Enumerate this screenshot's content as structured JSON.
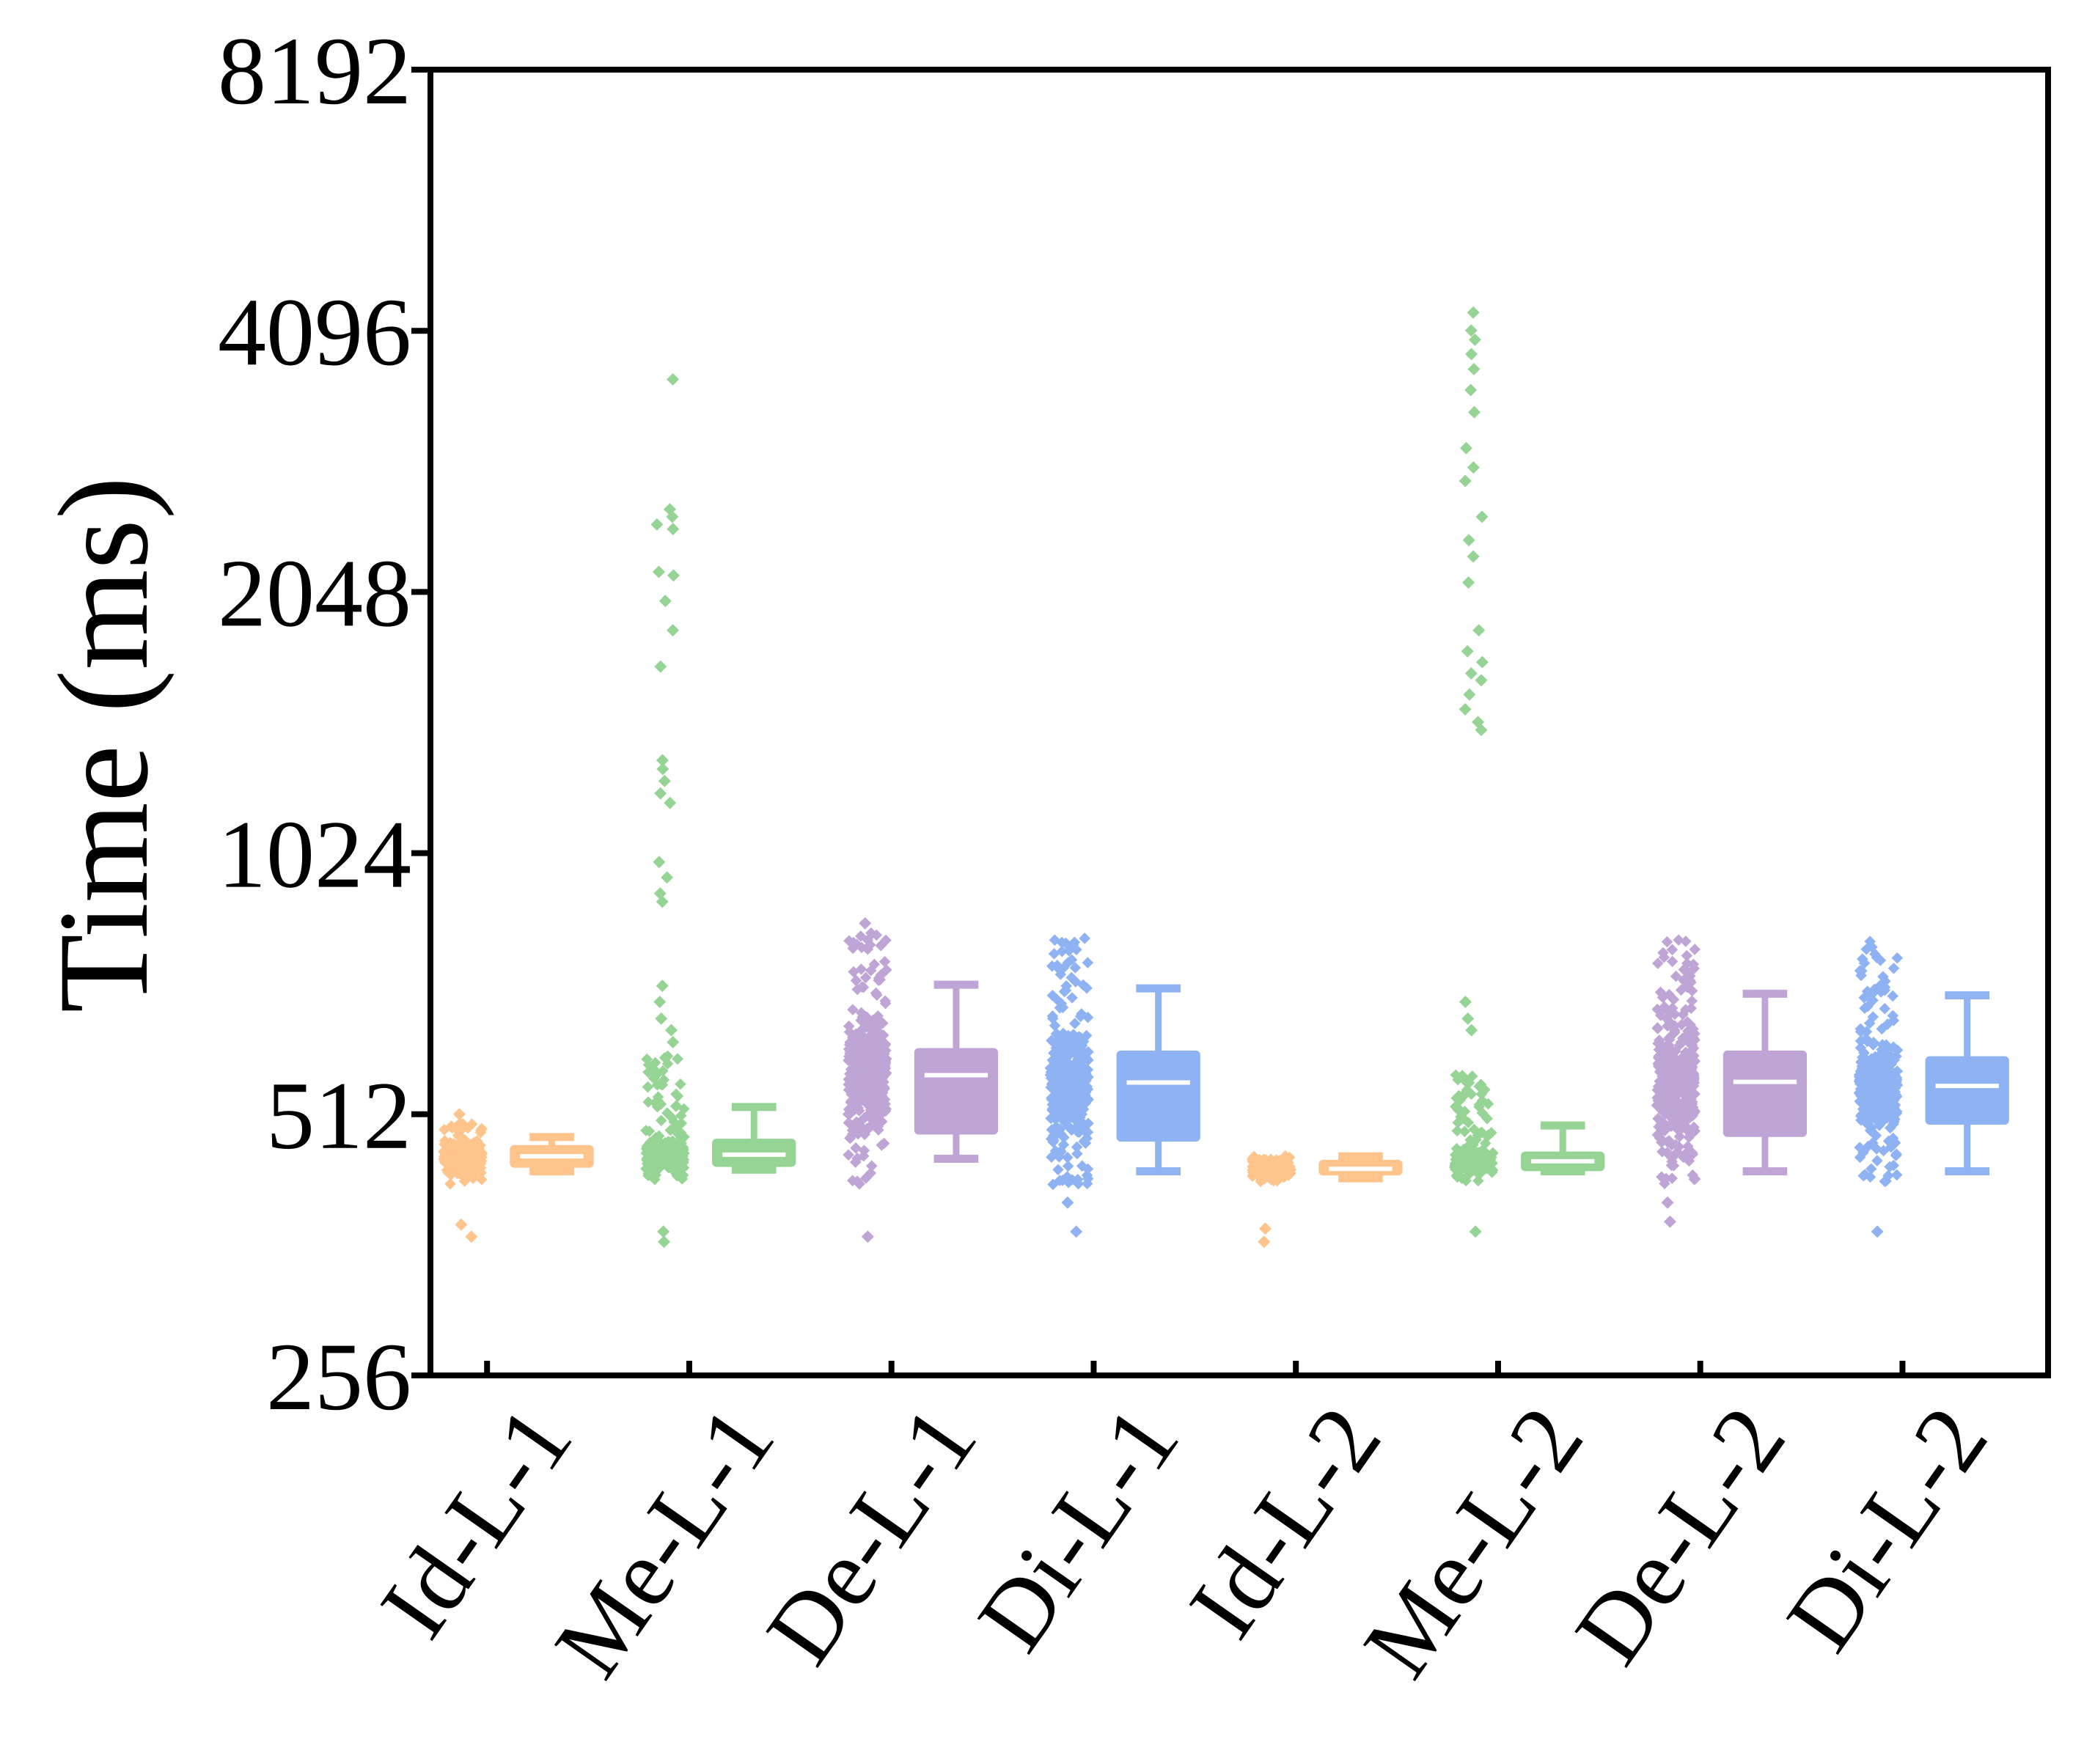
{
  "chart_data": {
    "type": "box",
    "ylabel": "Time (ms)",
    "xlabel": "",
    "y_scale": "log2",
    "ylim": [
      256,
      8192
    ],
    "yticks": [
      256,
      512,
      1024,
      2048,
      4096,
      8192
    ],
    "ytick_labels": [
      "256",
      "512",
      "1024",
      "2048",
      "4096",
      "8192"
    ],
    "categories": [
      "Id-L-1",
      "Me-L-1",
      "De-L-1",
      "Di-L-1",
      "Id-L-2",
      "Me-L-2",
      "De-L-2",
      "Di-L-2"
    ],
    "grid": false,
    "legend": "none",
    "series": [
      {
        "category": "Id-L-1",
        "color": "#FFC48C",
        "box": {
          "whisker_low": 440,
          "q1": 446,
          "median": 458,
          "q3": 470,
          "whisker_high": 482
        },
        "points": {
          "bulk_low": 425,
          "bulk_high": 500,
          "count": 220,
          "outliers": [
            512,
            382,
            370
          ]
        }
      },
      {
        "category": "Me-L-1",
        "color": "#95D494",
        "box": {
          "whisker_low": 442,
          "q1": 447,
          "median": 460,
          "q3": 478,
          "whisker_high": 522
        },
        "points": {
          "bulk_low": 430,
          "bulk_high": 600,
          "count": 260,
          "outliers": [
            3600,
            2550,
            2500,
            2450,
            2420,
            2160,
            2140,
            2000,
            1850,
            1680,
            1310,
            1280,
            1240,
            1200,
            1170,
            1000,
            960,
            920,
            900,
            720,
            690,
            660,
            640,
            620,
            365,
            375
          ]
        }
      },
      {
        "category": "De-L-1",
        "color": "#BFA5D6",
        "box": {
          "whisker_low": 455,
          "q1": 487,
          "median": 568,
          "q3": 608,
          "whisker_high": 722
        },
        "points": {
          "bulk_low": 425,
          "bulk_high": 830,
          "count": 380,
          "outliers": [
            850,
            370
          ]
        }
      },
      {
        "category": "Di-L-1",
        "color": "#8FB3F2",
        "box": {
          "whisker_low": 440,
          "q1": 478,
          "median": 557,
          "q3": 604,
          "whisker_high": 715
        },
        "points": {
          "bulk_low": 425,
          "bulk_high": 820,
          "count": 380,
          "outliers": [
            405,
            375
          ]
        }
      },
      {
        "category": "Id-L-2",
        "color": "#FFC48C",
        "box": {
          "whisker_low": 432,
          "q1": 437,
          "median": 443,
          "q3": 452,
          "whisker_high": 458
        },
        "points": {
          "bulk_low": 428,
          "bulk_high": 460,
          "count": 200,
          "outliers": [
            378,
            365
          ]
        }
      },
      {
        "category": "Me-L-2",
        "color": "#95D494",
        "box": {
          "whisker_low": 440,
          "q1": 442,
          "median": 452,
          "q3": 462,
          "whisker_high": 497
        },
        "points": {
          "bulk_low": 428,
          "bulk_high": 570,
          "count": 230,
          "outliers": [
            4300,
            4100,
            4000,
            3850,
            3700,
            3500,
            3300,
            3000,
            2850,
            2750,
            2500,
            2350,
            2250,
            2100,
            1850,
            1750,
            1700,
            1650,
            1620,
            1560,
            1500,
            1450,
            1420,
            690,
            660,
            640,
            375
          ]
        }
      },
      {
        "category": "De-L-2",
        "color": "#BFA5D6",
        "box": {
          "whisker_low": 440,
          "q1": 484,
          "median": 558,
          "q3": 604,
          "whisker_high": 705
        },
        "points": {
          "bulk_low": 425,
          "bulk_high": 815,
          "count": 380,
          "outliers": [
            405,
            385
          ]
        }
      },
      {
        "category": "Di-L-2",
        "color": "#8FB3F2",
        "box": {
          "whisker_low": 440,
          "q1": 500,
          "median": 552,
          "q3": 595,
          "whisker_high": 702
        },
        "points": {
          "bulk_low": 425,
          "bulk_high": 815,
          "count": 380,
          "outliers": [
            375
          ]
        }
      }
    ]
  }
}
